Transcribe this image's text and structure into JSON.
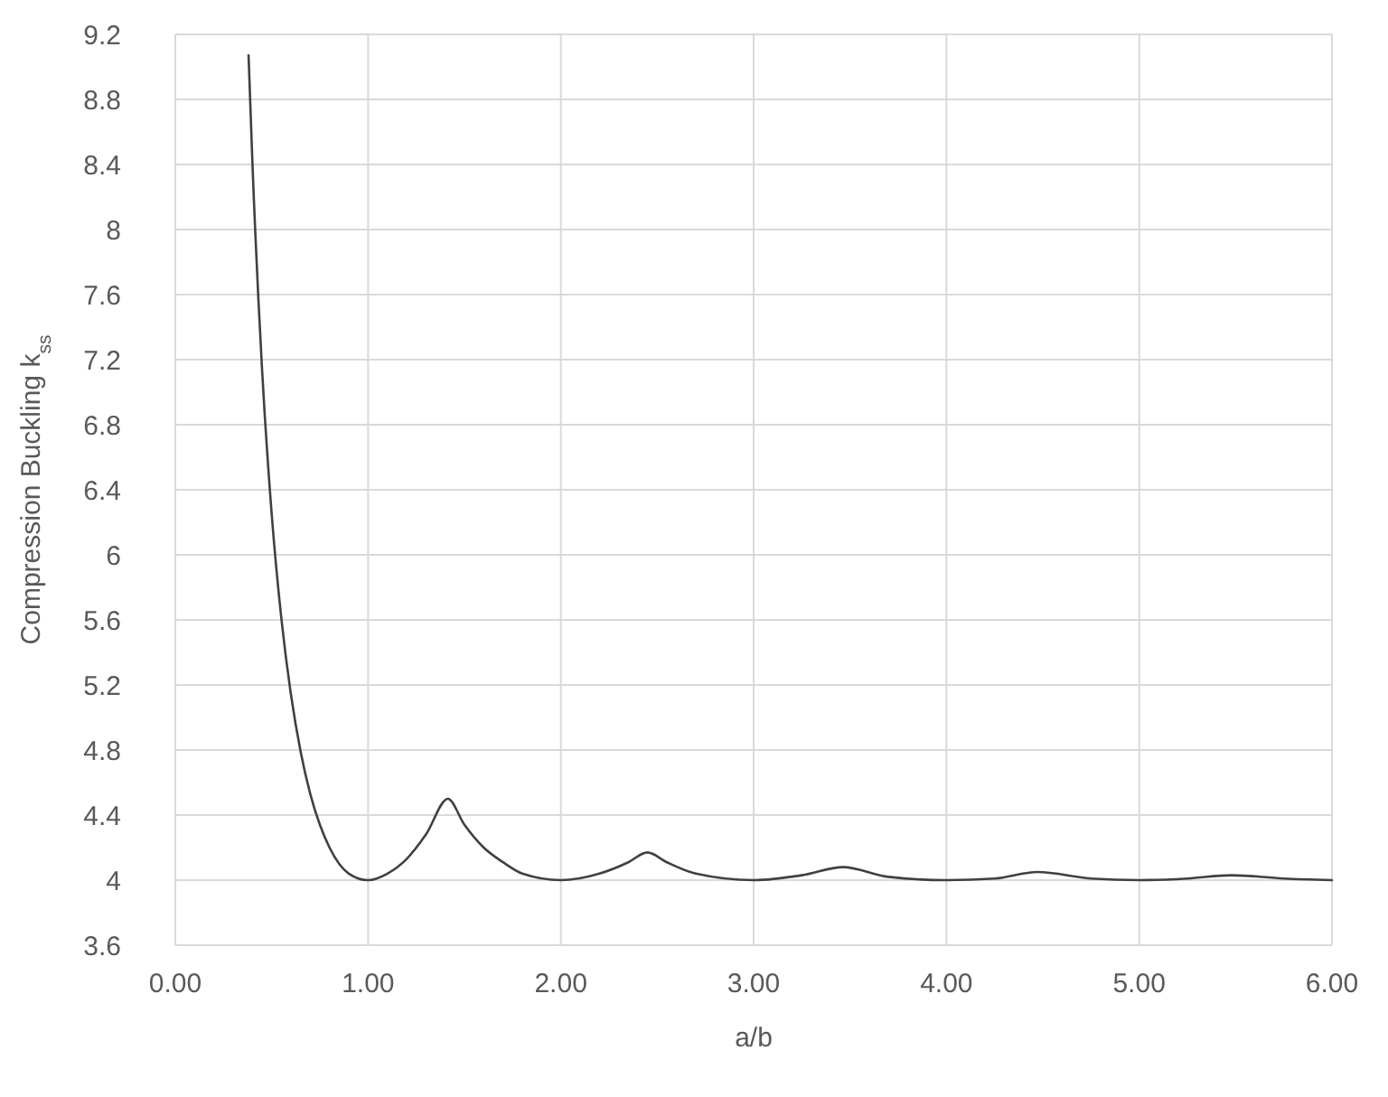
{
  "chart_data": {
    "type": "line",
    "xlabel": "a/b",
    "ylabel": "Compression Buckling k$_{ss}$",
    "x": [
      0.38,
      0.4,
      0.45,
      0.5,
      0.55,
      0.6,
      0.65,
      0.7,
      0.75,
      0.8,
      0.9,
      1.0,
      1.1,
      1.2,
      1.3,
      1.414,
      1.5,
      1.6,
      1.7,
      1.8,
      2.0,
      2.2,
      2.35,
      2.449,
      2.55,
      2.7,
      3.0,
      3.25,
      3.464,
      3.7,
      4.0,
      4.25,
      4.472,
      4.75,
      5.0,
      5.25,
      5.477,
      5.75,
      6.0
    ],
    "series": [
      {
        "color": "#404040",
        "values": [
          9.07,
          8.41,
          7.14,
          6.25,
          5.61,
          5.14,
          4.79,
          4.53,
          4.34,
          4.2,
          4.04,
          4,
          4.04,
          4.13,
          4.28,
          4.5,
          4.34,
          4.2,
          4.11,
          4.04,
          4,
          4.04,
          4.11,
          4.17,
          4.11,
          4.04,
          4,
          4.03,
          4.08,
          4.02,
          4,
          4.01,
          4.05,
          4.01,
          4,
          4.01,
          4.03,
          4.01,
          4
        ]
      }
    ],
    "xlim": [
      0,
      6
    ],
    "xticks": [
      {
        "value": 0,
        "label": "0.00"
      },
      {
        "value": 1,
        "label": "1.00"
      },
      {
        "value": 2,
        "label": "2.00"
      },
      {
        "value": 3,
        "label": "3.00"
      },
      {
        "value": 4,
        "label": "4.00"
      },
      {
        "value": 5,
        "label": "5.00"
      },
      {
        "value": 6,
        "label": "6.00"
      }
    ],
    "ylim": [
      3.6,
      9.2
    ],
    "yticks": [
      3.6,
      4,
      4.4,
      4.8,
      5.2,
      5.6,
      6,
      6.4,
      6.8,
      7.2,
      7.6,
      8,
      8.4,
      8.8,
      9.2
    ],
    "grid": true,
    "marker": "none",
    "line_style": "solid"
  }
}
